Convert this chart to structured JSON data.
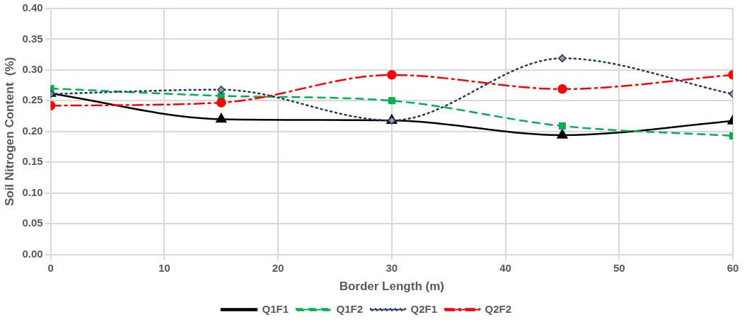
{
  "chart_data": {
    "type": "line",
    "xlabel": "Border Length (m)",
    "ylabel": "Soil Nitrogen Content  (%)",
    "x": [
      0,
      15,
      30,
      45,
      60
    ],
    "series": [
      {
        "name": "Q1F1",
        "color": "#000000",
        "values": [
          0.262,
          0.22,
          0.218,
          0.194,
          0.217
        ],
        "marker": "triangle",
        "line_style": "solid"
      },
      {
        "name": "Q1F2",
        "color": "#00b050",
        "values": [
          0.27,
          0.258,
          0.25,
          0.209,
          0.193
        ],
        "marker": "square",
        "line_style": "dashed"
      },
      {
        "name": "Q2F1",
        "color": "#1f3864",
        "values": [
          0.261,
          0.268,
          0.218,
          0.319,
          0.261
        ],
        "marker": "diamond",
        "line_style": "dotted"
      },
      {
        "name": "Q2F2",
        "color": "#ff0000",
        "values": [
          0.242,
          0.247,
          0.292,
          0.269,
          0.292
        ],
        "marker": "circle",
        "line_style": "dashdot"
      }
    ],
    "xlim": [
      0,
      60
    ],
    "xticks": [
      0,
      10,
      20,
      30,
      40,
      50,
      60
    ],
    "ylim": [
      0,
      0.4
    ],
    "yticks": [
      {
        "value": 0,
        "label": "0.00"
      },
      {
        "value": 0.05,
        "label": "0.05"
      },
      {
        "value": 0.1,
        "label": "0.10"
      },
      {
        "value": 0.15,
        "label": "0.15"
      },
      {
        "value": 0.2,
        "label": "0.20"
      },
      {
        "value": 0.25,
        "label": "0.25"
      },
      {
        "value": 0.3,
        "label": "0.30"
      },
      {
        "value": 0.35,
        "label": "0.35"
      },
      {
        "value": 0.4,
        "label": "0.40"
      }
    ],
    "grid": true,
    "legend": "bottom"
  }
}
